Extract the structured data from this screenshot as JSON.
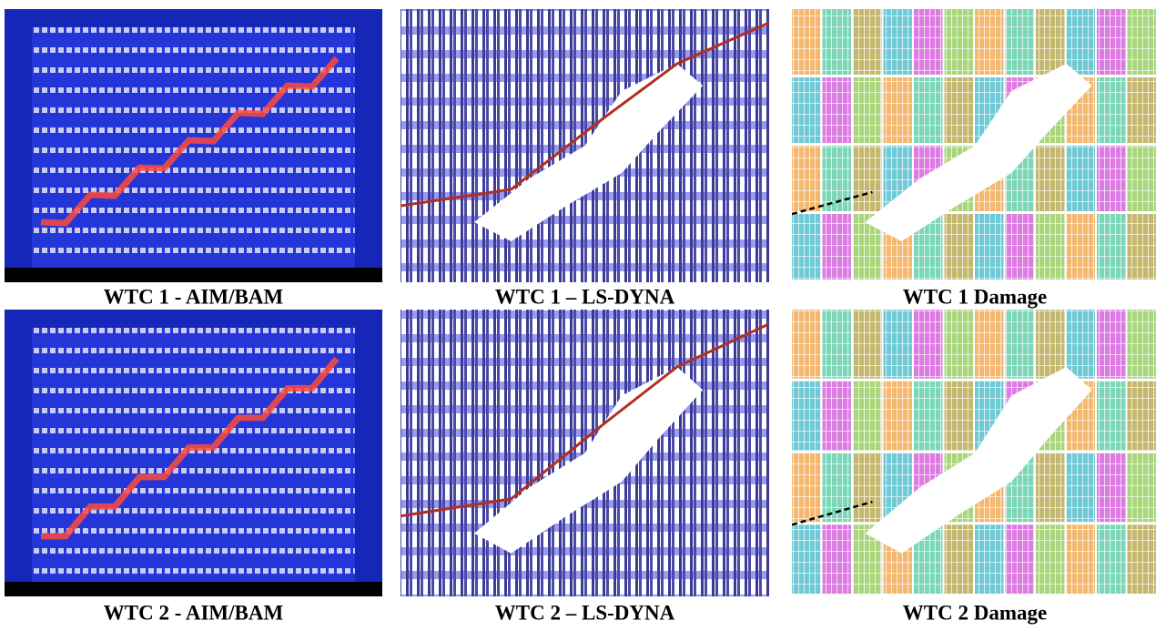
{
  "panels": [
    {
      "caption": "WTC 1 - AIM/BAM",
      "kind": "aim"
    },
    {
      "caption": "WTC 1 – LS-DYNA",
      "kind": "dyna"
    },
    {
      "caption": "WTC 1 Damage",
      "kind": "damage"
    },
    {
      "caption": "WTC 2 - AIM/BAM",
      "kind": "aim"
    },
    {
      "caption": "WTC 2 – LS-DYNA",
      "kind": "dyna"
    },
    {
      "caption": "WTC 2 Damage",
      "kind": "damage"
    }
  ]
}
